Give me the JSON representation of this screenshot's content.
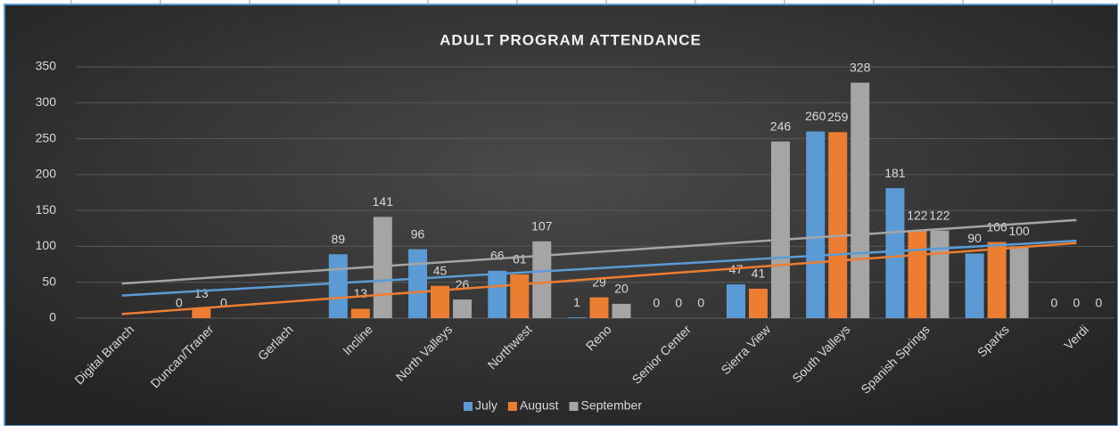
{
  "chart_data": {
    "type": "bar",
    "title": "ADULT PROGRAM ATTENDANCE",
    "categories": [
      "Digital Branch",
      "Duncan/Traner",
      "Gerlach",
      "Incline",
      "North Valleys",
      "Northwest",
      "Reno",
      "Senior Center",
      "Sierra View",
      "South Valleys",
      "Spanish Springs",
      "Sparks",
      "Verdi"
    ],
    "series": [
      {
        "name": "July",
        "color": "#5b9bd5",
        "values": [
          null,
          0,
          null,
          89,
          96,
          66,
          1,
          0,
          47,
          260,
          181,
          90,
          0
        ]
      },
      {
        "name": "August",
        "color": "#ed7d31",
        "values": [
          null,
          13,
          null,
          13,
          45,
          61,
          29,
          0,
          41,
          259,
          122,
          106,
          0
        ]
      },
      {
        "name": "September",
        "color": "#a5a5a5",
        "values": [
          null,
          0,
          null,
          141,
          26,
          107,
          20,
          0,
          246,
          328,
          122,
          100,
          0
        ]
      }
    ],
    "ylim": [
      0,
      350
    ],
    "yticks": [
      0,
      50,
      100,
      150,
      200,
      250,
      300,
      350
    ],
    "grid": true,
    "trendline": "linear",
    "legend": "bottom"
  }
}
